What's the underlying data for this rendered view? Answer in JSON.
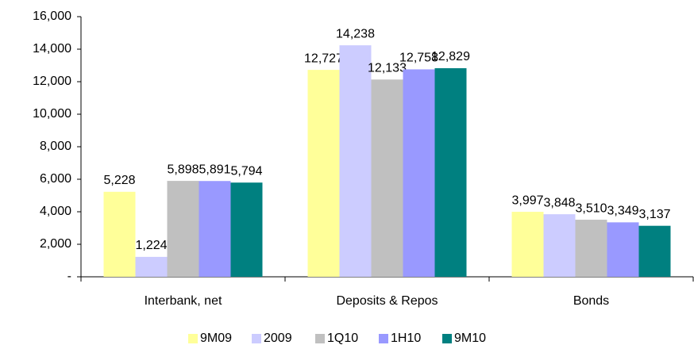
{
  "chart_data": {
    "type": "bar",
    "categories": [
      "Interbank, net",
      "Deposits & Repos",
      "Bonds"
    ],
    "series": [
      {
        "name": "9M09",
        "color": "#ffff99",
        "values": [
          5228,
          12727,
          3997
        ],
        "value_labels": [
          "5,228",
          "12,727",
          "3,997"
        ]
      },
      {
        "name": "2009",
        "color": "#ccccff",
        "values": [
          1224,
          14238,
          3848
        ],
        "value_labels": [
          "1,224",
          "14,238",
          "3,848"
        ]
      },
      {
        "name": "1Q10",
        "color": "#c0c0c0",
        "values": [
          5898,
          12133,
          3510
        ],
        "value_labels": [
          "5,898",
          "12,133",
          "3,510"
        ]
      },
      {
        "name": "1H10",
        "color": "#9999ff",
        "values": [
          5891,
          12758,
          3349
        ],
        "value_labels": [
          "5,891",
          "12,758",
          "3,349"
        ]
      },
      {
        "name": "9M10",
        "color": "#008080",
        "values": [
          5794,
          12829,
          3137
        ],
        "value_labels": [
          "5,794",
          "12,829",
          "3,137"
        ]
      }
    ],
    "ylim": [
      0,
      16000
    ],
    "yticks": [
      {
        "value": 0,
        "label": "-"
      },
      {
        "value": 2000,
        "label": "2,000"
      },
      {
        "value": 4000,
        "label": "4,000"
      },
      {
        "value": 6000,
        "label": "6,000"
      },
      {
        "value": 8000,
        "label": "8,000"
      },
      {
        "value": 10000,
        "label": "10,000"
      },
      {
        "value": 12000,
        "label": "12,000"
      },
      {
        "value": 14000,
        "label": "14,000"
      },
      {
        "value": 16000,
        "label": "16,000"
      }
    ],
    "legend": "bottom"
  }
}
